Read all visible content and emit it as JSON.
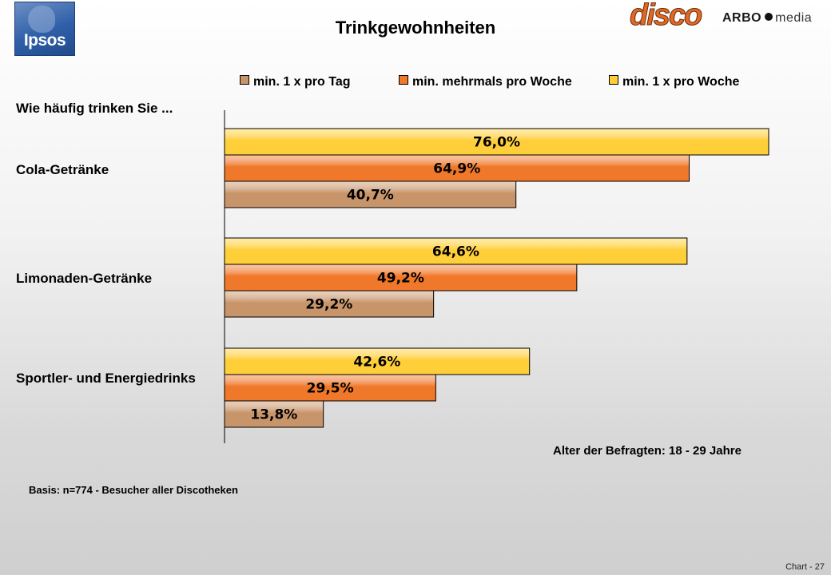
{
  "header": {
    "title": "Trinkgewohnheiten",
    "logo_left": "Ipsos",
    "logo_right_disco": "disco",
    "logo_right_arbo": "ARBO",
    "logo_right_media": "media"
  },
  "question": "Wie häufig trinken Sie ...",
  "note_age": "Alter der Befragten: 18 - 29 Jahre",
  "basis": "Basis: n=774 - Besucher aller Discotheken",
  "page_label": "Chart - 27",
  "chart_data": {
    "type": "bar",
    "orientation": "horizontal",
    "title": "Trinkgewohnheiten",
    "categories": [
      "Cola-Getränke",
      "Limonaden-Getränke",
      "Sportler- und Energiedrinks"
    ],
    "series": [
      {
        "name": "min. 1 x pro Woche",
        "color": "#ffcf3a",
        "values": [
          76.0,
          64.6,
          42.6
        ],
        "labels": [
          "76,0%",
          "64,6%",
          "42,6%"
        ]
      },
      {
        "name": "min. mehrmals pro Woche",
        "color": "#f0782a",
        "values": [
          64.9,
          49.2,
          29.5
        ],
        "labels": [
          "64,9%",
          "49,2%",
          "29,5%"
        ]
      },
      {
        "name": "min. 1 x pro Tag",
        "color": "#c8956a",
        "values": [
          40.7,
          29.2,
          13.8
        ],
        "labels": [
          "40,7%",
          "29,2%",
          "13,8%"
        ]
      }
    ],
    "legend_order": [
      "min. 1 x pro Tag",
      "min. mehrmals pro Woche",
      "min. 1 x pro Woche"
    ],
    "xlim": [
      0,
      100
    ],
    "xlabel": "",
    "ylabel": "",
    "grid": false,
    "legend_position": "top"
  }
}
